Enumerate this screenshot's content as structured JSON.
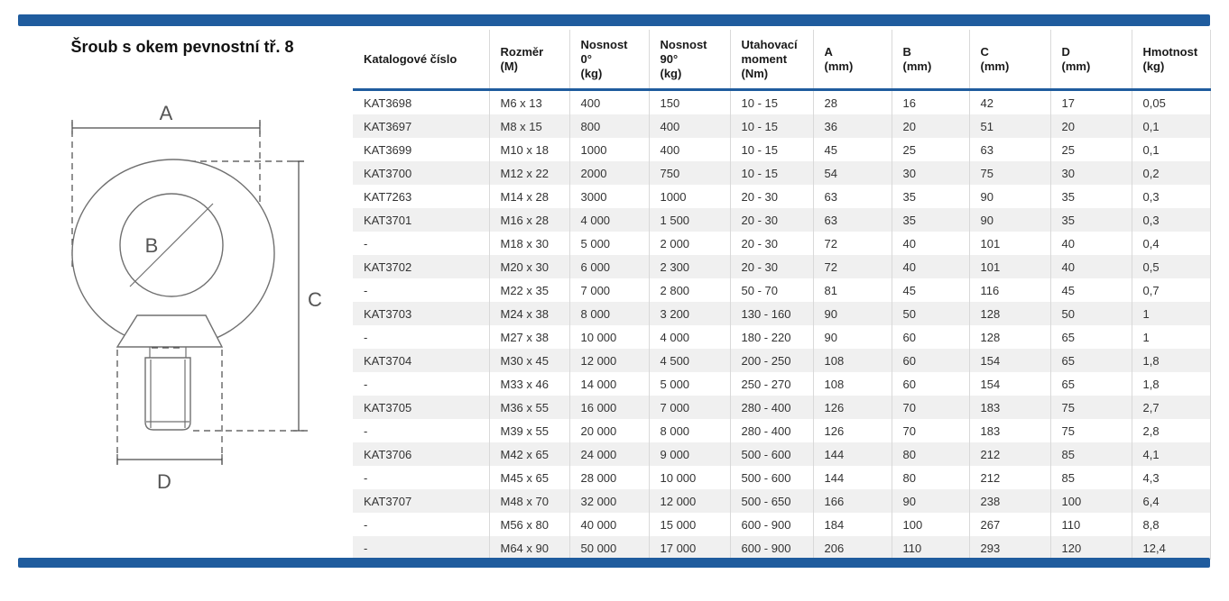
{
  "title": "Šroub s okem pevnostní tř. 8",
  "accent_color": "#1f5c9e",
  "drawing": {
    "dim_a": "A",
    "dim_b": "B",
    "dim_c": "C",
    "dim_d": "D"
  },
  "table": {
    "headers": [
      "Katalogové číslo",
      "Rozměr\n(M)",
      "Nosnost\n0°\n(kg)",
      "Nosnost\n90°\n(kg)",
      "Utahovací\nmoment\n(Nm)",
      "A\n(mm)",
      "B\n(mm)",
      "C\n(mm)",
      "D\n(mm)",
      "Hmotnost\n(kg)"
    ],
    "rows": [
      [
        "KAT3698",
        "M6 x 13",
        "400",
        "150",
        "10 - 15",
        "28",
        "16",
        "42",
        "17",
        "0,05"
      ],
      [
        "KAT3697",
        "M8 x 15",
        "800",
        "400",
        "10 - 15",
        "36",
        "20",
        "51",
        "20",
        "0,1"
      ],
      [
        "KAT3699",
        "M10 x 18",
        "1000",
        "400",
        "10 - 15",
        "45",
        "25",
        "63",
        "25",
        "0,1"
      ],
      [
        "KAT3700",
        "M12 x 22",
        "2000",
        "750",
        "10 - 15",
        "54",
        "30",
        "75",
        "30",
        "0,2"
      ],
      [
        "KAT7263",
        "M14 x 28",
        "3000",
        "1000",
        "20 - 30",
        "63",
        "35",
        "90",
        "35",
        "0,3"
      ],
      [
        "KAT3701",
        "M16 x 28",
        "4 000",
        "1 500",
        "20 - 30",
        "63",
        "35",
        "90",
        "35",
        "0,3"
      ],
      [
        "-",
        "M18 x 30",
        "5 000",
        "2 000",
        "20 - 30",
        "72",
        "40",
        "101",
        "40",
        "0,4"
      ],
      [
        "KAT3702",
        "M20 x 30",
        "6 000",
        "2 300",
        "20 - 30",
        "72",
        "40",
        "101",
        "40",
        "0,5"
      ],
      [
        "-",
        "M22 x 35",
        "7 000",
        "2 800",
        "50 - 70",
        "81",
        "45",
        "116",
        "45",
        "0,7"
      ],
      [
        "KAT3703",
        "M24 x 38",
        "8 000",
        "3 200",
        "130 - 160",
        "90",
        "50",
        "128",
        "50",
        "1"
      ],
      [
        "-",
        "M27 x 38",
        "10 000",
        "4 000",
        "180 - 220",
        "90",
        "60",
        "128",
        "65",
        "1"
      ],
      [
        "KAT3704",
        "M30 x 45",
        "12 000",
        "4 500",
        "200 - 250",
        "108",
        "60",
        "154",
        "65",
        "1,8"
      ],
      [
        "-",
        "M33 x 46",
        "14 000",
        "5 000",
        "250 - 270",
        "108",
        "60",
        "154",
        "65",
        "1,8"
      ],
      [
        "KAT3705",
        "M36 x 55",
        "16 000",
        "7 000",
        "280 - 400",
        "126",
        "70",
        "183",
        "75",
        "2,7"
      ],
      [
        "-",
        "M39 x 55",
        "20 000",
        "8 000",
        "280 - 400",
        "126",
        "70",
        "183",
        "75",
        "2,8"
      ],
      [
        "KAT3706",
        "M42 x 65",
        "24 000",
        "9 000",
        "500 - 600",
        "144",
        "80",
        "212",
        "85",
        "4,1"
      ],
      [
        "-",
        "M45 x 65",
        "28 000",
        "10 000",
        "500 - 600",
        "144",
        "80",
        "212",
        "85",
        "4,3"
      ],
      [
        "KAT3707",
        "M48 x 70",
        "32 000",
        "12 000",
        "500 - 650",
        "166",
        "90",
        "238",
        "100",
        "6,4"
      ],
      [
        "-",
        "M56 x 80",
        "40 000",
        "15 000",
        "600 - 900",
        "184",
        "100",
        "267",
        "110",
        "8,8"
      ],
      [
        "-",
        "M64 x 90",
        "50 000",
        "17 000",
        "600 - 900",
        "206",
        "110",
        "293",
        "120",
        "12,4"
      ]
    ]
  }
}
